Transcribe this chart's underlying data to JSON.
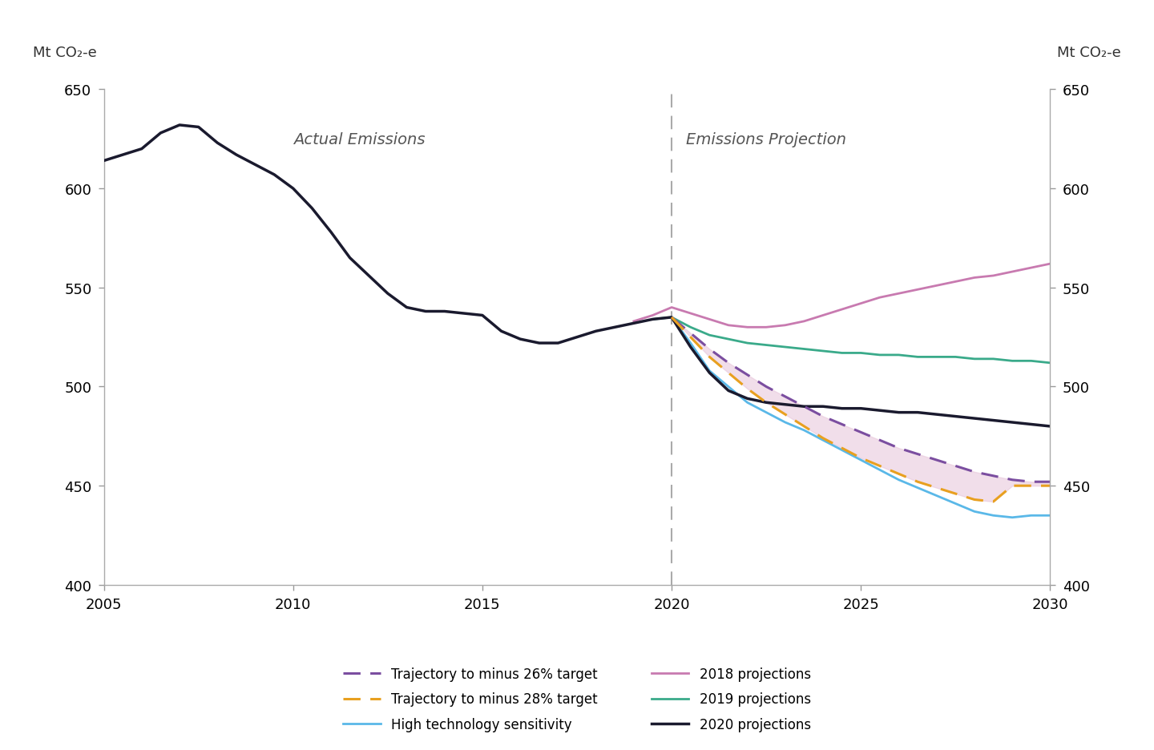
{
  "ylabel_left": "Mt CO₂-e",
  "ylabel_right": "Mt CO₂-e",
  "ylim": [
    400,
    650
  ],
  "xlim": [
    2005,
    2030
  ],
  "yticks": [
    400,
    450,
    500,
    550,
    600,
    650
  ],
  "xticks": [
    2005,
    2010,
    2015,
    2020,
    2025,
    2030
  ],
  "divider_x": 2020,
  "label_actual": "Actual Emissions",
  "label_projection": "Emissions Projection",
  "proj_2020_x": [
    2005,
    2005.5,
    2006,
    2006.5,
    2007,
    2007.5,
    2008,
    2008.5,
    2009,
    2009.5,
    2010,
    2010.5,
    2011,
    2011.5,
    2012,
    2012.5,
    2013,
    2013.5,
    2014,
    2014.5,
    2015,
    2015.5,
    2016,
    2016.5,
    2017,
    2017.5,
    2018,
    2018.5,
    2019,
    2019.5,
    2020,
    2020.5,
    2021,
    2021.5,
    2022,
    2022.5,
    2023,
    2023.5,
    2024,
    2024.5,
    2025,
    2025.5,
    2026,
    2026.5,
    2027,
    2027.5,
    2028,
    2028.5,
    2029,
    2029.5,
    2030
  ],
  "proj_2020_y": [
    614,
    617,
    620,
    628,
    632,
    631,
    623,
    617,
    612,
    607,
    600,
    590,
    578,
    565,
    556,
    547,
    540,
    538,
    538,
    537,
    536,
    528,
    524,
    522,
    522,
    525,
    528,
    530,
    532,
    534,
    535,
    520,
    507,
    498,
    494,
    492,
    491,
    490,
    490,
    489,
    489,
    488,
    487,
    487,
    486,
    485,
    484,
    483,
    482,
    481,
    480
  ],
  "proj_2018_x": [
    2019,
    2019.5,
    2020,
    2020.5,
    2021,
    2021.5,
    2022,
    2022.5,
    2023,
    2023.5,
    2024,
    2024.5,
    2025,
    2025.5,
    2026,
    2026.5,
    2027,
    2027.5,
    2028,
    2028.5,
    2029,
    2029.5,
    2030
  ],
  "proj_2018_y": [
    533,
    536,
    540,
    537,
    534,
    531,
    530,
    530,
    531,
    533,
    536,
    539,
    542,
    545,
    547,
    549,
    551,
    553,
    555,
    556,
    558,
    560,
    562
  ],
  "proj_2019_x": [
    2019.5,
    2020,
    2020.5,
    2021,
    2021.5,
    2022,
    2022.5,
    2023,
    2023.5,
    2024,
    2024.5,
    2025,
    2025.5,
    2026,
    2026.5,
    2027,
    2027.5,
    2028,
    2028.5,
    2029,
    2029.5,
    2030
  ],
  "proj_2019_y": [
    534,
    535,
    530,
    526,
    524,
    522,
    521,
    520,
    519,
    518,
    517,
    517,
    516,
    516,
    515,
    515,
    515,
    514,
    514,
    513,
    513,
    512
  ],
  "traj_26_x": [
    2020,
    2020.5,
    2021,
    2021.5,
    2022,
    2022.5,
    2023,
    2023.5,
    2024,
    2024.5,
    2025,
    2025.5,
    2026,
    2026.5,
    2027,
    2027.5,
    2028,
    2028.5,
    2029,
    2029.5,
    2030
  ],
  "traj_26_y": [
    535,
    527,
    519,
    512,
    506,
    500,
    495,
    490,
    485,
    481,
    477,
    473,
    469,
    466,
    463,
    460,
    457,
    455,
    453,
    452,
    452
  ],
  "traj_28_x": [
    2020,
    2020.5,
    2021,
    2021.5,
    2022,
    2022.5,
    2023,
    2023.5,
    2024,
    2024.5,
    2025,
    2025.5,
    2026,
    2026.5,
    2027,
    2027.5,
    2028,
    2028.5,
    2029,
    2029.5,
    2030
  ],
  "traj_28_y": [
    535,
    525,
    515,
    507,
    499,
    492,
    486,
    480,
    474,
    469,
    464,
    460,
    456,
    452,
    449,
    446,
    443,
    442,
    450,
    450,
    450
  ],
  "high_tech_x": [
    2020,
    2020.5,
    2021,
    2021.5,
    2022,
    2022.5,
    2023,
    2023.5,
    2024,
    2024.5,
    2025,
    2025.5,
    2026,
    2026.5,
    2027,
    2027.5,
    2028,
    2028.5,
    2029,
    2029.5,
    2030
  ],
  "high_tech_y": [
    535,
    522,
    508,
    500,
    492,
    487,
    482,
    478,
    473,
    468,
    463,
    458,
    453,
    449,
    445,
    441,
    437,
    435,
    434,
    435,
    435
  ],
  "color_proj_2020": "#1a1a2e",
  "color_proj_2018": "#c87ab0",
  "color_proj_2019": "#3aaa8a",
  "color_traj_26": "#7B4EA0",
  "color_traj_28": "#E8A020",
  "color_high_tech": "#5ab8e8",
  "color_divider": "#aaaaaa",
  "fill_color": "#e8c8dc",
  "background_color": "#ffffff",
  "legend_entries": [
    {
      "label": "Trajectory to minus 26% target",
      "color": "#7B4EA0",
      "style": "dashed"
    },
    {
      "label": "Trajectory to minus 28% target",
      "color": "#E8A020",
      "style": "dashed"
    },
    {
      "label": "High technology sensitivity",
      "color": "#5ab8e8",
      "style": "solid"
    },
    {
      "label": "2018 projections",
      "color": "#c87ab0",
      "style": "solid"
    },
    {
      "label": "2019 projections",
      "color": "#3aaa8a",
      "style": "solid"
    },
    {
      "label": "2020 projections",
      "color": "#1a1a2e",
      "style": "solid"
    }
  ]
}
